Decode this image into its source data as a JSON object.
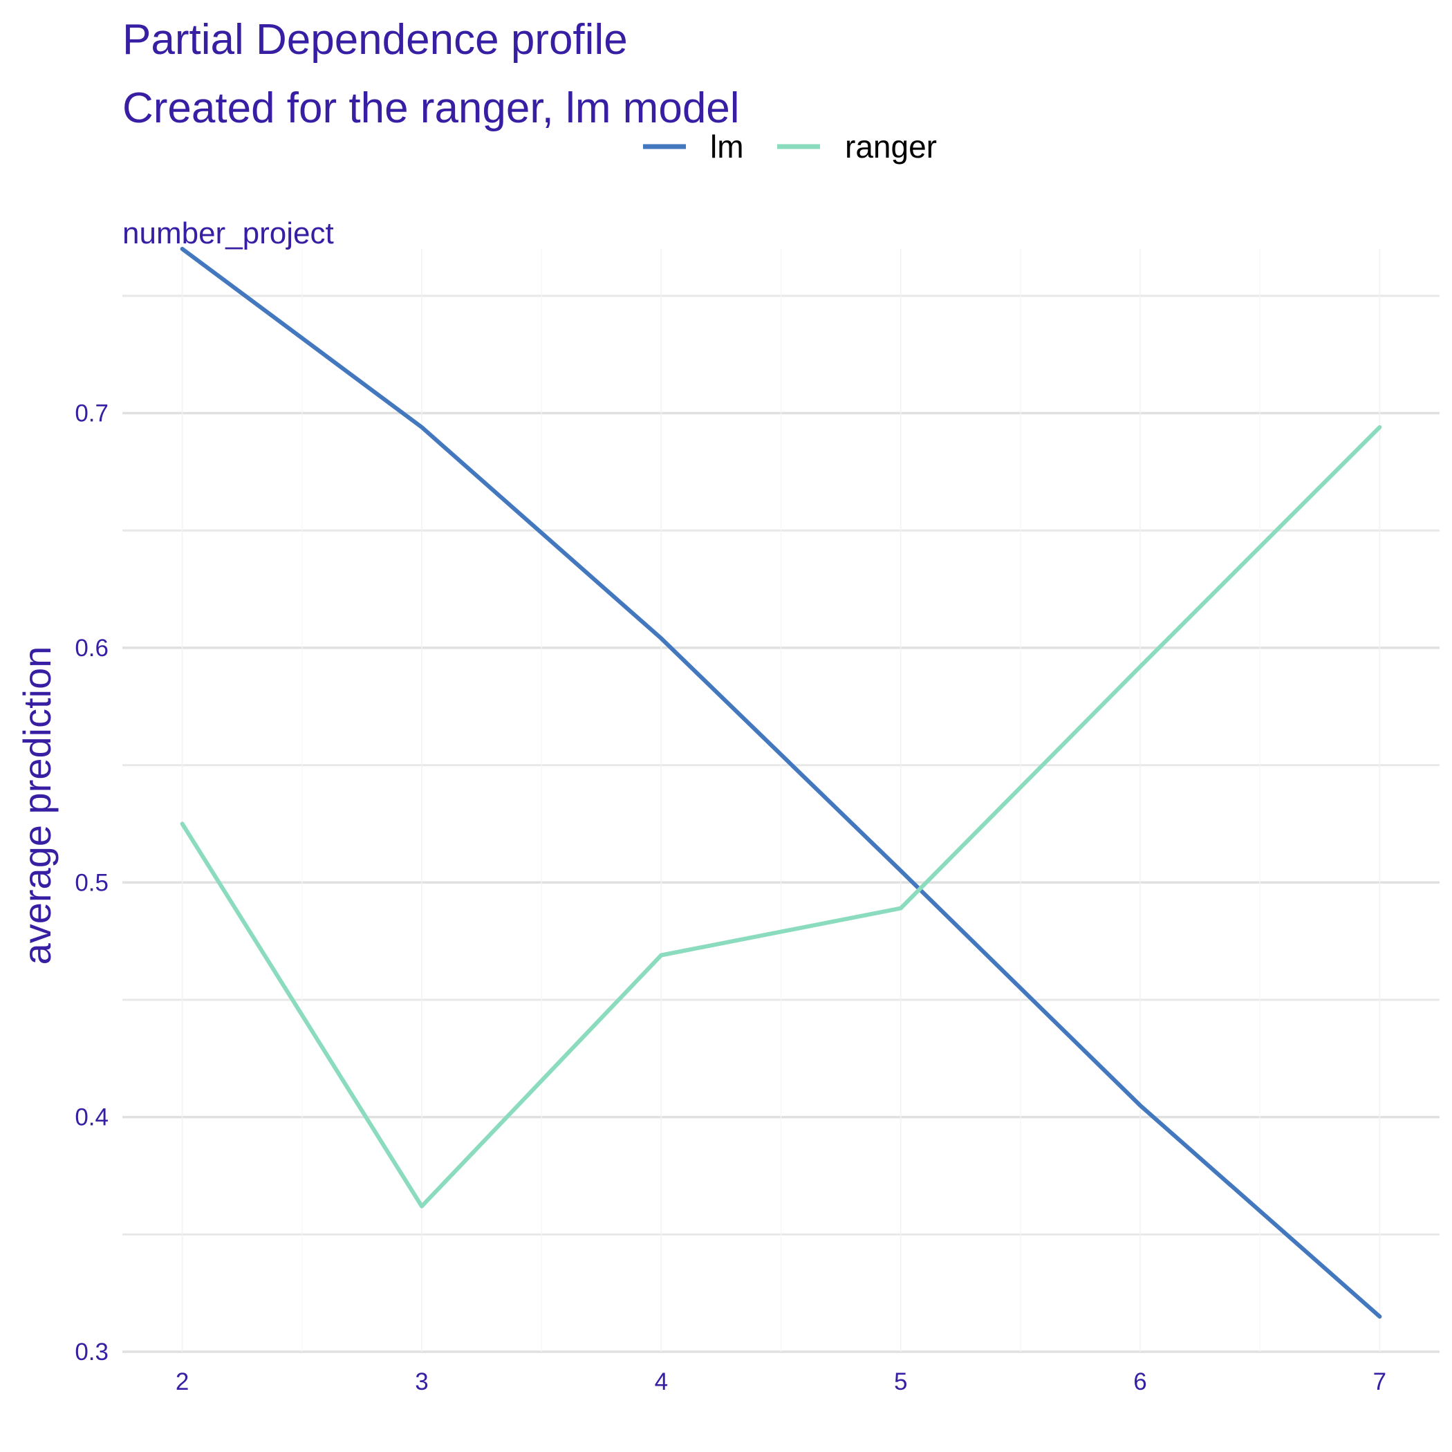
{
  "chart_data": {
    "type": "line",
    "title": "Partial Dependence profile",
    "subtitle": "Created for the ranger, lm model",
    "facet_label": "number_project",
    "xlabel": "",
    "ylabel": "average prediction",
    "x": [
      2,
      3,
      4,
      5,
      6,
      7
    ],
    "xlim": [
      1.75,
      7.25
    ],
    "ylim": [
      0.3,
      0.77
    ],
    "x_ticks": [
      2,
      3,
      4,
      5,
      6,
      7
    ],
    "y_ticks": [
      0.3,
      0.4,
      0.5,
      0.6,
      0.7
    ],
    "y_tick_labels": [
      "0.3",
      "0.4",
      "0.5",
      "0.6",
      "0.7"
    ],
    "x_tick_labels": [
      "2",
      "3",
      "4",
      "5",
      "6",
      "7"
    ],
    "grid": true,
    "legend_position": "top",
    "series": [
      {
        "name": "lm",
        "color": "#4378bf",
        "values": [
          0.77,
          0.694,
          0.604,
          0.505,
          0.405,
          0.315
        ]
      },
      {
        "name": "ranger",
        "color": "#8bdcbe",
        "values": [
          0.525,
          0.362,
          0.469,
          0.489,
          0.592,
          0.694
        ]
      }
    ]
  }
}
